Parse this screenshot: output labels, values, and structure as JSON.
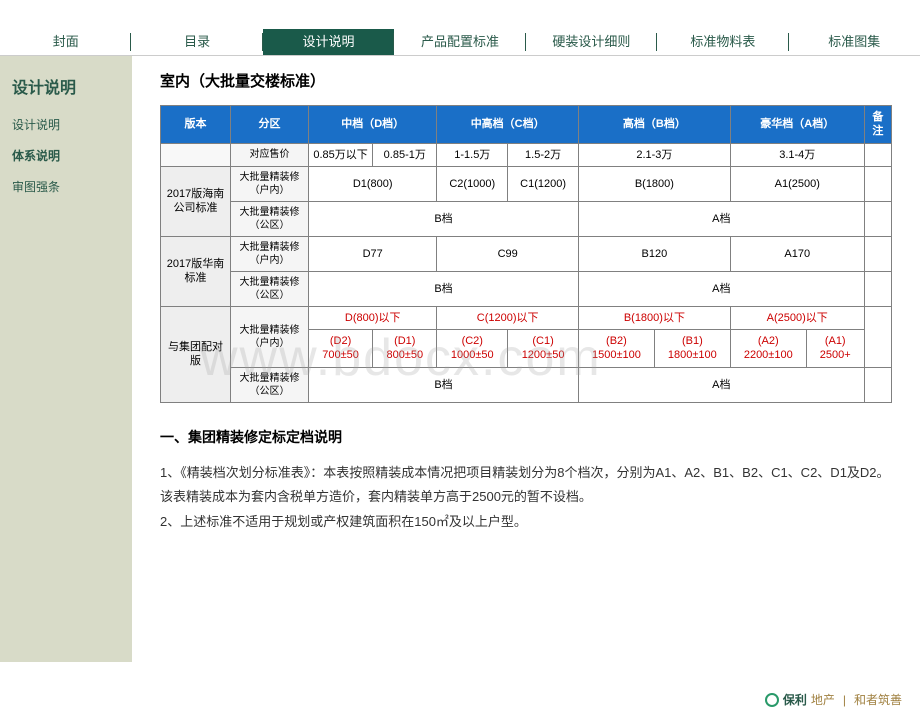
{
  "nav": {
    "items": [
      "封面",
      "目录",
      "设计说明",
      "产品配置标准",
      "硬装设计细则",
      "标准物料表",
      "标准图集"
    ],
    "activeIndex": 2
  },
  "sidebar": {
    "title": "设计说明",
    "items": [
      {
        "label": "设计说明",
        "active": false
      },
      {
        "label": "体系说明",
        "active": true
      },
      {
        "label": "审图强条",
        "active": false
      }
    ]
  },
  "content": {
    "title": "室内（大批量交楼标准）",
    "table": {
      "headers": [
        "版本",
        "分区",
        "中档（D档）",
        "中高档（C档）",
        "高档（B档）",
        "豪华档（A档）",
        "备注"
      ],
      "header_colspans": [
        1,
        1,
        2,
        2,
        2,
        2,
        1
      ],
      "row_price": {
        "label": "对应售价",
        "cells": [
          "0.85万以下",
          "0.85-1万",
          "1-1.5万",
          "1.5-2万",
          "2.1-3万",
          "3.1-4万"
        ],
        "cell_colspans": [
          1,
          1,
          1,
          1,
          2,
          2
        ]
      },
      "group_hainan": {
        "label": "2017版海南公司标准",
        "r1": {
          "sub": "大批量精装修（户内）",
          "cells": [
            "D1(800)",
            "C2(1000)",
            "C1(1200)",
            "B(1800)",
            "A1(2500)"
          ],
          "cell_colspans": [
            2,
            1,
            1,
            2,
            2
          ]
        },
        "r2": {
          "sub": "大批量精装修（公区）",
          "cells": [
            "B档",
            "A档"
          ],
          "cell_colspans": [
            4,
            4
          ]
        }
      },
      "group_huanan": {
        "label": "2017版华南标准",
        "r1": {
          "sub": "大批量精装修（户内）",
          "cells": [
            "D77",
            "C99",
            "B120",
            "A170"
          ],
          "cell_colspans": [
            2,
            2,
            2,
            2
          ]
        },
        "r2": {
          "sub": "大批量精装修（公区）",
          "cells": [
            "B档",
            "A档"
          ],
          "cell_colspans": [
            4,
            4
          ]
        }
      },
      "group_jituan": {
        "label": "与集团配对版",
        "r1": {
          "sub": "大批量精装修（户内）",
          "cells_top": [
            "D(800)以下",
            "C(1200)以下",
            "B(1800)以下",
            "A(2500)以下"
          ],
          "cells_bot": [
            "(D2) 700±50",
            "(D1) 800±50",
            "(C2) 1000±50",
            "(C1) 1200±50",
            "(B2) 1500±100",
            "(B1) 1800±100",
            "(A2) 2200±100",
            "(A1) 2500+"
          ]
        },
        "r2": {
          "sub": "大批量精装修（公区）",
          "cells": [
            "B档",
            "A档"
          ],
          "cell_colspans": [
            4,
            4
          ]
        }
      }
    },
    "section_title": "一、集团精装修定标定档说明",
    "para1": "1、《精装档次划分标准表》：本表按照精装成本情况把项目精装划分为8个档次，分别为A1、A2、B1、B2、C1、C2、D1及D2。该表精装成本为套内含税单方造价，套内精装单方高于2500元的暂不设档。",
    "para2": "2、上述标准不适用于规划或产权建筑面积在150㎡及以上户型。"
  },
  "footer": {
    "brand1": "保利",
    "brand1_suffix": "地产",
    "brand2": "和者筑善"
  },
  "watermark": "www.bdocx.com",
  "colors": {
    "nav_active_bg": "#1a5a4a",
    "header_bg": "#1a6fc7",
    "sidebar_bg": "#d8dbc8",
    "red": "#cc0000"
  }
}
